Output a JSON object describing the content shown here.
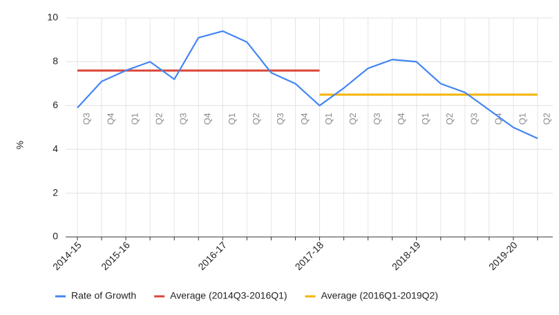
{
  "chart_data": {
    "type": "line",
    "y_label": "%",
    "categories": [
      "Q3",
      "Q4",
      "Q1",
      "Q2",
      "Q3",
      "Q4",
      "Q1",
      "Q2",
      "Q3",
      "Q4",
      "Q1",
      "Q2",
      "Q3",
      "Q4",
      "Q1",
      "Q2",
      "Q3",
      "Q4",
      "Q1",
      "Q2"
    ],
    "year_labels": [
      "2014-15",
      null,
      "2015-16",
      null,
      null,
      null,
      "2016-17",
      null,
      null,
      null,
      "2017-18",
      null,
      null,
      null,
      "2018-19",
      null,
      null,
      null,
      "2019-20",
      null
    ],
    "series": [
      {
        "name": "Rate of Growth",
        "color": "#4285f4",
        "values": [
          5.9,
          7.1,
          7.6,
          8.0,
          7.2,
          9.1,
          9.4,
          8.9,
          7.5,
          7.0,
          6.0,
          6.8,
          7.7,
          8.1,
          8.0,
          7.0,
          6.6,
          5.8,
          5.0,
          4.5
        ]
      },
      {
        "name": "Average (2014Q3-2016Q1)",
        "color": "#db4437",
        "values": [
          7.6,
          7.6,
          7.6,
          7.6,
          7.6,
          7.6,
          7.6,
          7.6,
          7.6,
          7.6,
          7.6,
          null,
          null,
          null,
          null,
          null,
          null,
          null,
          null,
          null
        ]
      },
      {
        "name": "Average (2016Q1-2019Q2)",
        "color": "#f4b400",
        "values": [
          null,
          null,
          null,
          null,
          null,
          null,
          null,
          null,
          null,
          null,
          6.5,
          6.5,
          6.5,
          6.5,
          6.5,
          6.5,
          6.5,
          6.5,
          6.5,
          6.5
        ]
      }
    ],
    "ylim": [
      0,
      10
    ],
    "yticks": [
      0,
      2,
      4,
      6,
      8,
      10
    ],
    "grid": true,
    "legend": "bottom"
  }
}
